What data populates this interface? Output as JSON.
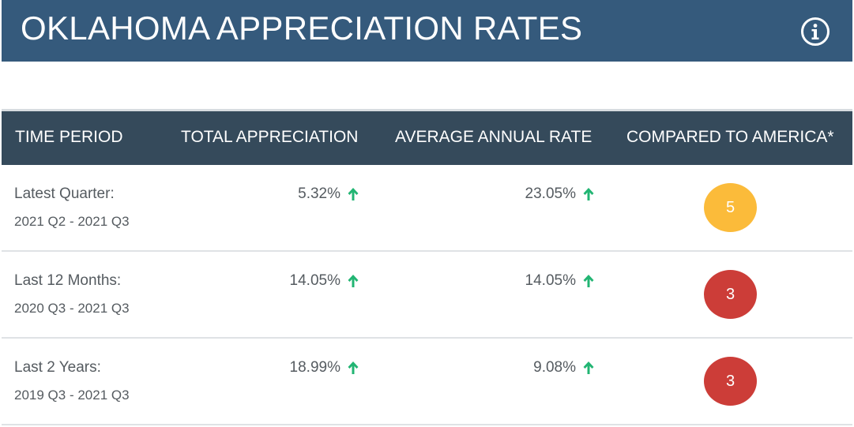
{
  "header": {
    "title": "OKLAHOMA APPRECIATION RATES",
    "info_icon": "info-circle-icon"
  },
  "table": {
    "columns": [
      "TIME PERIOD",
      "TOTAL APPRECIATION",
      "AVERAGE ANNUAL RATE",
      "COMPARED TO AMERICA*"
    ],
    "rows": [
      {
        "period_label": "Latest Quarter:",
        "period_range": "2021 Q2 - 2021 Q3",
        "total_appreciation": "5.32%",
        "total_trend": "up-arrow-icon",
        "average_annual_rate": "23.05%",
        "average_trend": "up-arrow-icon",
        "compared_rank": "5",
        "rank_color": "#fbbb3a"
      },
      {
        "period_label": "Last 12 Months:",
        "period_range": "2020 Q3 - 2021 Q3",
        "total_appreciation": "14.05%",
        "total_trend": "up-arrow-icon",
        "average_annual_rate": "14.05%",
        "average_trend": "up-arrow-icon",
        "compared_rank": "3",
        "rank_color": "#cc3d38"
      },
      {
        "period_label": "Last 2 Years:",
        "period_range": "2019 Q3 - 2021 Q3",
        "total_appreciation": "18.99%",
        "total_trend": "up-arrow-icon",
        "average_annual_rate": "9.08%",
        "average_trend": "up-arrow-icon",
        "compared_rank": "3",
        "rank_color": "#cc3d38"
      }
    ]
  },
  "colors": {
    "title_bar": "#355a7c",
    "table_header": "#354a5b",
    "up_arrow": "#22b573",
    "text": "#555b60"
  }
}
